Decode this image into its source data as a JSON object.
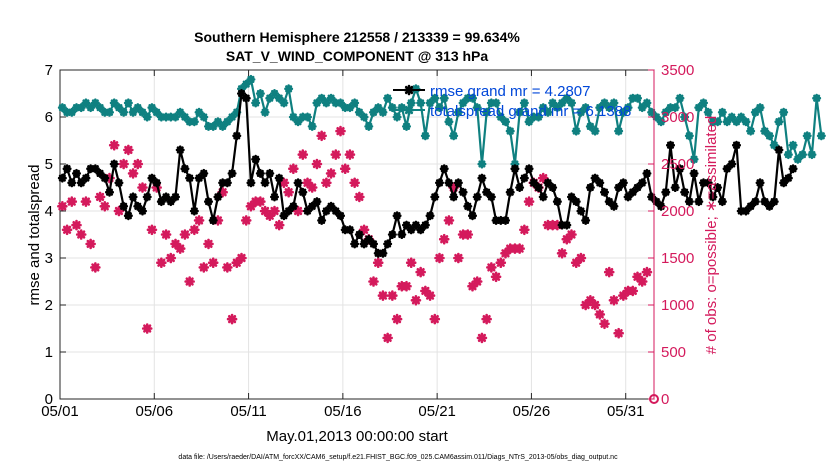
{
  "chart_data": {
    "type": "line",
    "title_line1": "Southern Hemisphere 212558 / 213339 = 99.634%",
    "title_line2": "SAT_V_WIND_COMPONENT @ 313 hPa",
    "xlabel": "May.01,2013 00:00:00 start",
    "ylabel_left": "rmse and totalspread",
    "ylabel_right": "# of obs: o=possible; ∗=assimilated",
    "footer": "data file: /Users/raeder/DAI/ATM_forcXX/CAM6_setup/f.e21.FHIST_BGC.f09_025.CAM6assim.011/Diags_NTrS_2013-05/obs_diag_output.nc",
    "xlim": [
      1,
      32.5
    ],
    "ylim_left": [
      0,
      7
    ],
    "ylim_right": [
      0,
      3500
    ],
    "x_ticks": [
      1,
      6,
      11,
      16,
      21,
      26,
      31
    ],
    "x_tick_labels": [
      "05/01",
      "05/06",
      "05/11",
      "05/16",
      "05/21",
      "05/26",
      "05/31"
    ],
    "y_ticks_left": [
      0,
      1,
      2,
      3,
      4,
      5,
      6,
      7
    ],
    "y_ticks_right": [
      0,
      500,
      1000,
      1500,
      2000,
      2500,
      3000,
      3500
    ],
    "grid": true,
    "legend_position": "top-right",
    "colors": {
      "rmse": "#000000",
      "spread": "#0f8080",
      "obs": "#d41a5c",
      "legend_text": "#0047d9",
      "right_axis": "#d41a5c"
    },
    "series": [
      {
        "name": "rmse grand mr = 4.2807",
        "axis": "left",
        "x_start": 1.125,
        "x_step": 0.25,
        "values": [
          4.7,
          4.9,
          4.6,
          4.8,
          4.6,
          4.7,
          4.9,
          4.9,
          4.8,
          4.7,
          4.4,
          5.0,
          4.6,
          4.1,
          3.9,
          4.3,
          4.1,
          4.0,
          4.3,
          4.7,
          4.6,
          4.2,
          4.3,
          4.2,
          4.3,
          5.3,
          4.9,
          4.7,
          4.0,
          4.7,
          4.8,
          4.2,
          3.8,
          4.3,
          4.6,
          4.6,
          4.8,
          5.6,
          6.5,
          6.4,
          4.6,
          5.1,
          4.8,
          4.6,
          4.8,
          4.3,
          4.7,
          3.9,
          4.0,
          4.1,
          4.6,
          4.4,
          4.0,
          4.1,
          4.2,
          3.8,
          4.0,
          4.1,
          4.0,
          3.9,
          3.6,
          3.6,
          3.3,
          3.5,
          3.3,
          3.4,
          3.3,
          3.1,
          3.1,
          3.3,
          3.5,
          3.9,
          3.5,
          3.7,
          3.6,
          3.7,
          3.6,
          3.7,
          3.9,
          4.3,
          4.6,
          4.9,
          4.6,
          4.3,
          4.6,
          4.4,
          4.1,
          3.9,
          4.3,
          4.7,
          4.4,
          4.3,
          3.8,
          3.8,
          3.8,
          4.4,
          4.9,
          4.5,
          4.7,
          4.9,
          4.6,
          4.5,
          4.3,
          4.6,
          4.5,
          4.2,
          3.7,
          3.7,
          4.3,
          4.2,
          4.0,
          3.8,
          4.5,
          4.7,
          4.6,
          4.4,
          4.2,
          4.1,
          4.5,
          4.6,
          4.3,
          4.4,
          4.5,
          4.6,
          4.8,
          4.3,
          4.2,
          4.1,
          4.4,
          5.4,
          4.5,
          4.9,
          4.4,
          4.2,
          4.8,
          4.2,
          4.6,
          4.6,
          4.3,
          4.5,
          4.2,
          4.9,
          5.0,
          5.4,
          4.0,
          4.0,
          4.1,
          4.2,
          4.6,
          4.2,
          4.1,
          4.2,
          5.3,
          4.6,
          4.7,
          4.9
        ]
      },
      {
        "name": "totalspread grand mr = 6.1388",
        "axis": "left",
        "x_start": 1.125,
        "x_step": 0.25,
        "values": [
          6.2,
          6.1,
          6.1,
          6.2,
          6.2,
          6.3,
          6.2,
          6.3,
          6.2,
          6.1,
          6.1,
          6.3,
          6.2,
          6.1,
          6.3,
          6.1,
          6.2,
          6.1,
          6.0,
          6.2,
          6.1,
          6.0,
          6.0,
          6.0,
          6.0,
          6.1,
          6.0,
          5.9,
          5.9,
          6.1,
          6.0,
          5.8,
          5.8,
          5.9,
          5.8,
          5.9,
          6.0,
          6.1,
          6.6,
          6.7,
          6.8,
          6.3,
          6.5,
          6.1,
          6.4,
          6.5,
          6.4,
          6.3,
          6.6,
          6.0,
          5.9,
          6.0,
          6.0,
          5.8,
          6.3,
          6.4,
          6.3,
          6.4,
          6.3,
          6.3,
          6.2,
          6.2,
          6.3,
          6.1,
          6.0,
          5.8,
          6.1,
          6.2,
          6.1,
          6.4,
          6.2,
          6.0,
          6.2,
          5.8,
          6.3,
          6.6,
          6.3,
          5.6,
          6.3,
          6.4,
          6.2,
          6.4,
          5.9,
          5.6,
          6.1,
          6.3,
          6.4,
          6.4,
          6.2,
          5.0,
          6.1,
          6.3,
          6.3,
          6.0,
          5.9,
          5.7,
          5.0,
          6.1,
          6.3,
          5.9,
          6.0,
          6.0,
          6.2,
          6.1,
          6.3,
          6.2,
          6.3,
          6.4,
          6.3,
          5.7,
          6.1,
          6.2,
          5.8,
          5.7,
          6.2,
          6.3,
          6.2,
          6.3,
          5.7,
          6.1,
          6.2,
          6.4,
          6.4,
          6.2,
          6.3,
          6.1,
          6.0,
          5.9,
          6.1,
          6.2,
          6.2,
          6.4,
          6.0,
          5.6,
          5.1,
          6.2,
          6.3,
          6.1,
          5.9,
          5.9,
          6.1,
          5.9,
          6.0,
          5.9,
          6.0,
          5.9,
          5.7,
          6.1,
          6.2,
          5.7,
          5.6,
          5.4,
          5.9,
          6.1,
          5.2,
          5.4,
          5.1,
          5.2,
          5.6,
          5.2,
          6.4,
          5.6
        ]
      },
      {
        "name": "assimilated",
        "axis": "right",
        "x": [
          1.125,
          1.375,
          1.625,
          1.875,
          2.125,
          2.375,
          2.625,
          2.875,
          3.125,
          3.375,
          3.625,
          3.875,
          4.125,
          4.375,
          4.625,
          4.875,
          5.125,
          5.375,
          5.625,
          5.875,
          6.125,
          6.375,
          6.625,
          6.875,
          7.125,
          7.375,
          7.625,
          7.875,
          8.125,
          8.375,
          8.625,
          8.875,
          9.125,
          9.375,
          9.625,
          9.875,
          10.125,
          10.375,
          10.625,
          10.875,
          11.125,
          11.375,
          11.625,
          11.875,
          12.125,
          12.375,
          12.625,
          12.875,
          13.125,
          13.375,
          13.625,
          13.875,
          14.125,
          14.375,
          14.625,
          14.875,
          15.125,
          15.375,
          15.625,
          15.875,
          16.125,
          16.375,
          16.625,
          16.875,
          17.125,
          17.375,
          17.625,
          17.875,
          18.125,
          18.375,
          18.625,
          18.875,
          19.125,
          19.375,
          19.625,
          19.875,
          20.125,
          20.375,
          20.625,
          20.875,
          21.125,
          21.375,
          21.625,
          21.875,
          22.125,
          22.375,
          22.625,
          22.875,
          23.125,
          23.375,
          23.625,
          23.875,
          24.125,
          24.375,
          24.625,
          24.875,
          25.125,
          25.375,
          25.625,
          25.875,
          26.125,
          26.375,
          26.625,
          26.875,
          27.125,
          27.375,
          27.625,
          27.875,
          28.125,
          28.375,
          28.625,
          28.875,
          29.125,
          29.375,
          29.625,
          29.875,
          30.125,
          30.375,
          30.625,
          30.875,
          31.125,
          31.375,
          31.625,
          31.875,
          32.125
        ],
        "values": [
          2050,
          1800,
          2100,
          1850,
          1750,
          2100,
          1650,
          1400,
          2150,
          2050,
          2350,
          2700,
          2000,
          2500,
          2650,
          2400,
          2500,
          2250,
          750,
          1800,
          2250,
          1450,
          1750,
          1500,
          1650,
          1600,
          1750,
          1250,
          1800,
          1900,
          1400,
          1650,
          1450,
          1900,
          2200,
          1400,
          850,
          1450,
          1500,
          1900,
          2050,
          2100,
          2100,
          2000,
          1950,
          2000,
          1850,
          2300,
          2200,
          2450,
          2000,
          2600,
          2300,
          2250,
          2500,
          2800,
          2300,
          2400,
          2600,
          2850,
          2450,
          2600,
          2300,
          2150,
          1800,
          1700,
          1250,
          1450,
          1100,
          650,
          1100,
          850,
          1200,
          1200,
          1450,
          1050,
          1350,
          1150,
          1100,
          850,
          1500,
          1700,
          1900,
          2250,
          1500,
          1750,
          1750,
          1200,
          1250,
          650,
          850,
          1400,
          1300,
          1450,
          1550,
          1600,
          1600,
          1600,
          1800,
          2100,
          2300,
          2250,
          2350,
          1850,
          1850,
          1850,
          1550,
          1700,
          1750,
          1450,
          1500,
          1000,
          1050,
          1000,
          900,
          800,
          1350,
          1050,
          700,
          1100,
          1150,
          1150,
          1300,
          1250,
          1350
        ]
      }
    ]
  }
}
